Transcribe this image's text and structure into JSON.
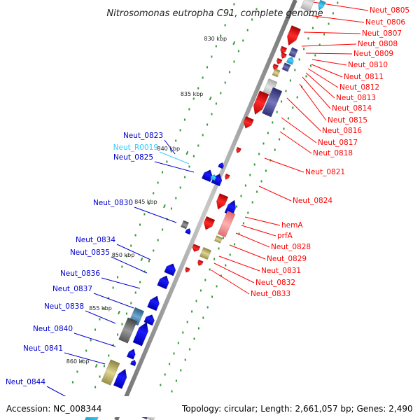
{
  "title": "Nitrosomonas eutropha C91, complete genome",
  "footer": {
    "accession": "Accession: NC_008344",
    "topology": "Topology: circular; Length: 2,661,057 bp; Genes: 2,490"
  },
  "colors": {
    "forward_gene": "#ff0000",
    "reverse_gene": "#0000ff",
    "rna_gene": "#33ccff",
    "pseudo_gene": "#888888",
    "other_feature": "#b5ab62",
    "backbone": "#888888",
    "gc_dots": "#339933"
  },
  "ticks": [
    "830 kbp",
    "835 kbp",
    "840 kbp",
    "845 kbp",
    "850 kbp",
    "855 kbp",
    "860 kbp"
  ],
  "labels_right": [
    "Neut_0805",
    "Neut_0806",
    "Neut_0807",
    "Neut_0808",
    "Neut_0809",
    "Neut_0810",
    "Neut_0811",
    "Neut_0812",
    "Neut_0813",
    "Neut_0814",
    "Neut_0815",
    "Neut_0816",
    "Neut_0817",
    "Neut_0818",
    "Neut_0821",
    "Neut_0824",
    "hemA",
    "prfA",
    "Neut_0828",
    "Neut_0829",
    "Neut_0831",
    "Neut_0832",
    "Neut_0833"
  ],
  "labels_left": [
    "Neut_0823",
    "Neut_R0019",
    "Neut_0825",
    "Neut_0830",
    "Neut_0834",
    "Neut_0835",
    "Neut_0836",
    "Neut_0837",
    "Neut_0838",
    "Neut_0840",
    "Neut_0841",
    "Neut_0844"
  ]
}
